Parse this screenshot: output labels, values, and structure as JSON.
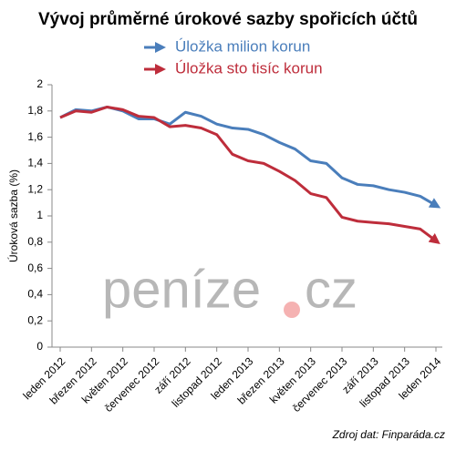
{
  "chart_data": {
    "type": "line",
    "title": "Vývoj průměrné úrokové sazby spořicích účtů",
    "ylabel": "Úroková sazba (%)",
    "source": "Zdroj dat: Finparáda.cz",
    "watermark": [
      "peníze",
      "cz"
    ],
    "categories": [
      "leden 2012",
      null,
      "březen 2012",
      null,
      "květen 2012",
      null,
      "červenec 2012",
      null,
      "září 2012",
      null,
      "listopad 2012",
      null,
      "leden 2013",
      null,
      "březen 2013",
      null,
      "květen 2013",
      null,
      "červenec 2013",
      null,
      "září 2013",
      null,
      "listopad 2013",
      null,
      "leden 2014"
    ],
    "series": [
      {
        "name": "Úložka milion korun",
        "color": "#4a7ebb",
        "values": [
          1.75,
          1.81,
          1.8,
          1.83,
          1.8,
          1.74,
          1.74,
          1.7,
          1.79,
          1.76,
          1.7,
          1.67,
          1.66,
          1.62,
          1.56,
          1.51,
          1.42,
          1.4,
          1.29,
          1.24,
          1.23,
          1.2,
          1.18,
          1.15,
          1.08
        ]
      },
      {
        "name": "Úložka sto tisíc korun",
        "color": "#be2d3b",
        "values": [
          1.75,
          1.8,
          1.79,
          1.83,
          1.81,
          1.76,
          1.75,
          1.68,
          1.69,
          1.67,
          1.62,
          1.47,
          1.42,
          1.4,
          1.34,
          1.27,
          1.17,
          1.14,
          0.99,
          0.96,
          0.95,
          0.94,
          0.92,
          0.9,
          0.81
        ]
      }
    ],
    "ylim": [
      0,
      2
    ],
    "yticks": [
      0,
      {
        "value": 0.2,
        "label": "0,2"
      },
      {
        "value": 0.4,
        "label": "0,4"
      },
      {
        "value": 0.6,
        "label": "0,6"
      },
      {
        "value": 0.8,
        "label": "0,8"
      },
      1,
      {
        "value": 1.2,
        "label": "1,2"
      },
      {
        "value": 1.4,
        "label": "1,4"
      },
      {
        "value": 1.6,
        "label": "1,6"
      },
      {
        "value": 1.8,
        "label": "1,8"
      },
      2
    ],
    "grid": false
  }
}
